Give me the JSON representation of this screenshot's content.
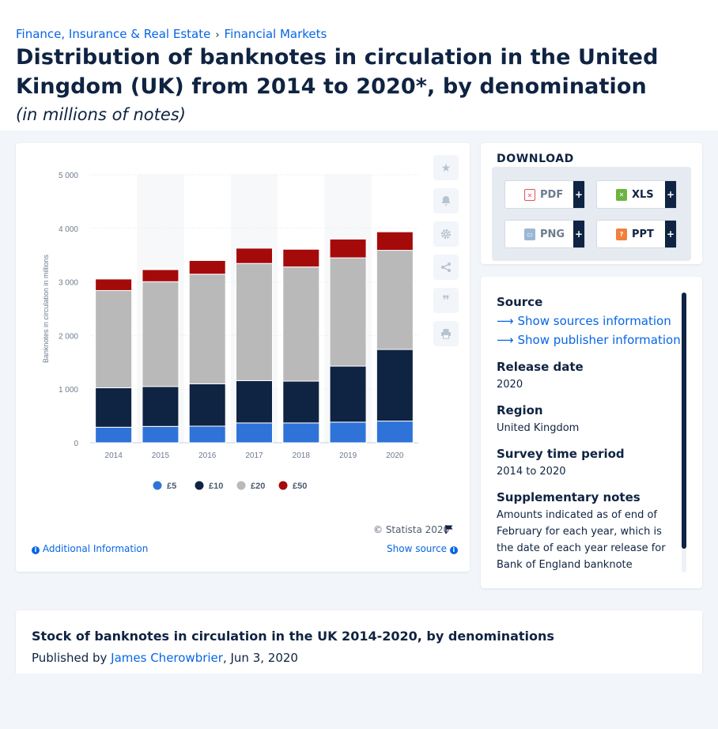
{
  "breadcrumb": {
    "items": [
      "Finance, Insurance & Real Estate",
      "Financial Markets"
    ],
    "separator": "›"
  },
  "page_title": "Distribution of banknotes in circulation in the United Kingdom (UK) from 2014 to 2020*, by denomination",
  "page_subtitle": "(in millions of notes)",
  "chart_data": {
    "type": "bar",
    "stacked": true,
    "title": "",
    "xlabel": "",
    "ylabel": "Banknotes in circulation in millions",
    "categories": [
      "2014",
      "2015",
      "2016",
      "2017",
      "2018",
      "2019",
      "2020"
    ],
    "ylim": [
      0,
      5000
    ],
    "yticks": [
      0,
      1000,
      2000,
      3000,
      4000,
      5000
    ],
    "ytick_labels": [
      "0",
      "1 000",
      "2 000",
      "3 000",
      "4 000",
      "5 000"
    ],
    "grid": true,
    "legend_position": "bottom",
    "series": [
      {
        "name": "£5",
        "color": "#2f73d9",
        "values": [
          290,
          305,
          310,
          370,
          370,
          385,
          405
        ]
      },
      {
        "name": "£10",
        "color": "#0f2342",
        "values": [
          735,
          745,
          790,
          790,
          780,
          1045,
          1335
        ]
      },
      {
        "name": "£20",
        "color": "#b9b9b9",
        "values": [
          1815,
          1955,
          2045,
          2185,
          2130,
          2020,
          1850
        ]
      },
      {
        "name": "£50",
        "color": "#a50a0a",
        "values": [
          215,
          225,
          255,
          285,
          330,
          350,
          345
        ]
      }
    ]
  },
  "chart_card": {
    "copyright": "© Statista 2020",
    "additional_info": "Additional Information",
    "show_source": "Show source"
  },
  "download": {
    "title": "DOWNLOAD",
    "buttons": [
      {
        "label": "PDF",
        "color": "#e8505b"
      },
      {
        "label": "XLS",
        "color": "#6cb33f"
      },
      {
        "label": "PNG",
        "color": "#7f9fbf"
      },
      {
        "label": "PPT",
        "color": "#f0803c"
      }
    ],
    "plus": "+"
  },
  "meta": {
    "source_label": "Source",
    "show_sources": "Show sources information",
    "show_publisher": "Show publisher information",
    "release_label": "Release date",
    "release_value": "2020",
    "region_label": "Region",
    "region_value": "United Kingdom",
    "period_label": "Survey time period",
    "period_value": "2014 to 2020",
    "notes_label": "Supplementary notes",
    "notes_value": "Amounts indicated as of end of February for each year, which is the date of each year release for Bank of England banknote"
  },
  "publication": {
    "title": "Stock of banknotes in circulation in the UK 2014-2020, by denominations",
    "published_by": "Published by",
    "author": "James Cherowbrier",
    "date": ", Jun 3, 2020"
  }
}
